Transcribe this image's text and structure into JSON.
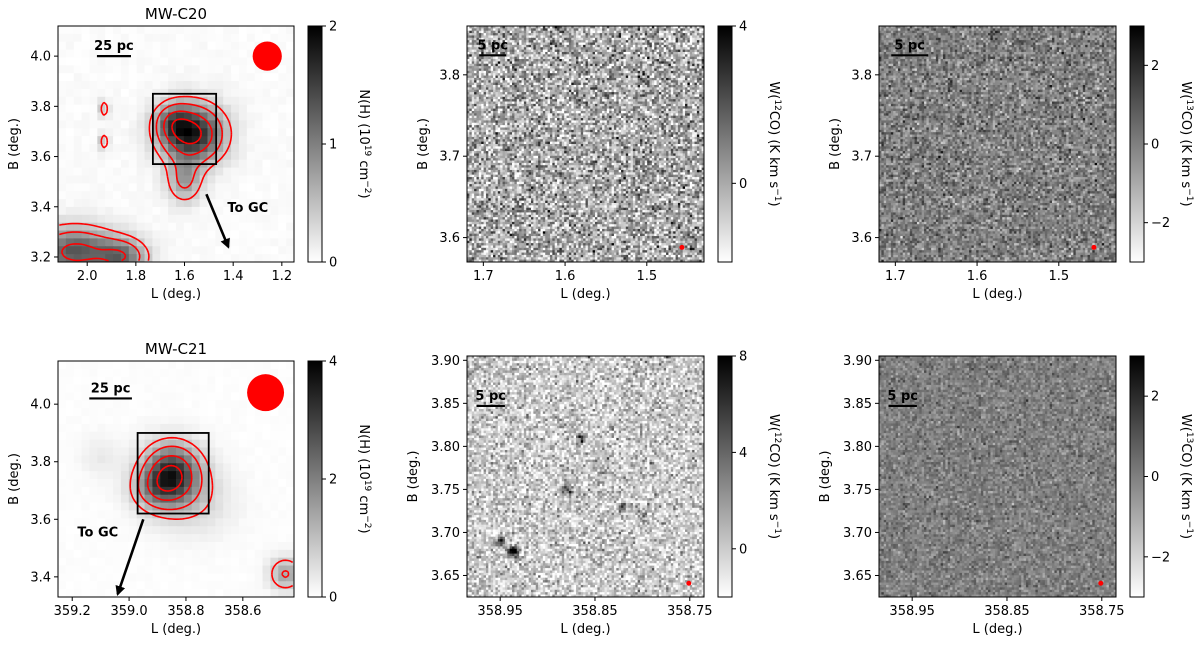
{
  "figure": {
    "colors": {
      "contour": "#ff0000",
      "beam": "#ff0000",
      "box": "#000000",
      "axis": "#000000"
    }
  },
  "chart_data": [
    {
      "id": "p00",
      "type": "heatmap",
      "title": "MW-C20",
      "xlabel": "L (deg.)",
      "ylabel": "B (deg.)",
      "xlim": [
        2.12,
        1.15
      ],
      "ylim": [
        3.18,
        4.12
      ],
      "xticks": [
        "2.0",
        "1.8",
        "1.6",
        "1.4",
        "1.2"
      ],
      "xtick_values": [
        2.0,
        1.8,
        1.6,
        1.4,
        1.2
      ],
      "yticks": [
        "3.2",
        "3.4",
        "3.6",
        "3.8",
        "4.0"
      ],
      "ytick_values": [
        3.2,
        3.4,
        3.6,
        3.8,
        4.0
      ],
      "colorbar": {
        "label": "N(H) (10<sup>19</sup> cm<sup>−2</sup>)",
        "label_text": "N(H) (10^19 cm^-2)",
        "ticks": [
          "0",
          "1",
          "2"
        ],
        "tick_values": [
          0,
          1,
          2
        ],
        "range": [
          0,
          2
        ],
        "cmap": "Greys"
      },
      "scalebar": {
        "label": "25 pc",
        "start": 1.96,
        "end": 1.82,
        "y": 4.0
      },
      "beam": {
        "l": 1.26,
        "b": 4.0,
        "radius_deg": 0.06
      },
      "box": {
        "l_range": [
          1.73,
          1.47
        ],
        "b_range": [
          3.57,
          3.85
        ]
      },
      "arrow": {
        "label": "To GC",
        "from": [
          1.51,
          3.45
        ],
        "to": [
          1.42,
          3.24
        ],
        "label_at": [
          1.34,
          3.38
        ]
      },
      "sources": [
        {
          "l": 1.57,
          "b": 3.69,
          "sl": 0.09,
          "sb": 0.08,
          "amp": 1.8
        },
        {
          "l": 1.65,
          "b": 3.74,
          "sl": 0.05,
          "sb": 0.05,
          "amp": 0.6
        },
        {
          "l": 1.6,
          "b": 3.5,
          "sl": 0.05,
          "sb": 0.06,
          "amp": 0.7
        },
        {
          "l": 1.93,
          "b": 3.79,
          "sl": 0.012,
          "sb": 0.025,
          "amp": 0.6
        },
        {
          "l": 1.93,
          "b": 3.66,
          "sl": 0.012,
          "sb": 0.025,
          "amp": 0.6
        },
        {
          "l": 2.05,
          "b": 3.22,
          "sl": 0.12,
          "sb": 0.07,
          "amp": 1.3
        },
        {
          "l": 1.85,
          "b": 3.2,
          "sl": 0.07,
          "sb": 0.05,
          "amp": 0.9
        }
      ]
    },
    {
      "id": "p01",
      "type": "heatmap",
      "title": "",
      "xlabel": "L (deg.)",
      "ylabel": "B (deg.)",
      "xlim": [
        1.72,
        1.43
      ],
      "ylim": [
        3.57,
        3.86
      ],
      "xticks": [
        "1.7",
        "1.6",
        "1.5"
      ],
      "xtick_values": [
        1.7,
        1.6,
        1.5
      ],
      "yticks": [
        "3.6",
        "3.7",
        "3.8"
      ],
      "ytick_values": [
        3.6,
        3.7,
        3.8
      ],
      "colorbar": {
        "label": "W(<sup>12</sup>CO) (K km s<sup>−1</sup>)",
        "label_text": "W(12CO) (K km s^-1)",
        "ticks": [
          "0",
          "4"
        ],
        "tick_values": [
          0,
          4
        ],
        "range": [
          -2.0,
          4.0
        ],
        "cmap": "Greys"
      },
      "scalebar": {
        "label": "5 pc",
        "start": 1.705,
        "end": 1.672,
        "y": 3.824
      },
      "beam": {
        "l": 1.457,
        "b": 3.588
      },
      "noise": 1.3,
      "sources": []
    },
    {
      "id": "p02",
      "type": "heatmap",
      "title": "",
      "xlabel": "L (deg.)",
      "ylabel": "B (deg.)",
      "xlim": [
        1.72,
        1.43
      ],
      "ylim": [
        3.57,
        3.86
      ],
      "xticks": [
        "1.7",
        "1.6",
        "1.5"
      ],
      "xtick_values": [
        1.7,
        1.6,
        1.5
      ],
      "yticks": [
        "3.6",
        "3.7",
        "3.8"
      ],
      "ytick_values": [
        3.6,
        3.7,
        3.8
      ],
      "colorbar": {
        "label": "W(<sup>13</sup>CO) (K km s<sup>−1</sup>)",
        "label_text": "W(13CO) (K km s^-1)",
        "ticks": [
          "−2",
          "0",
          "2"
        ],
        "tick_values": [
          -2,
          0,
          2
        ],
        "range": [
          -3.0,
          3.0
        ],
        "cmap": "Greys"
      },
      "scalebar": {
        "label": "5 pc",
        "start": 1.705,
        "end": 1.66,
        "y": 3.824
      },
      "beam": {
        "l": 1.457,
        "b": 3.588
      },
      "noise": 0.75,
      "sources": []
    },
    {
      "id": "p10",
      "type": "heatmap",
      "title": "MW-C21",
      "xlabel": "L (deg.)",
      "ylabel": "B (deg.)",
      "xlim": [
        359.25,
        358.42
      ],
      "ylim": [
        3.33,
        4.15
      ],
      "xticks": [
        "359.2",
        "359.0",
        "358.8",
        "358.6"
      ],
      "xtick_values": [
        359.2,
        359.0,
        358.8,
        358.6
      ],
      "yticks": [
        "3.4",
        "3.6",
        "3.8",
        "4.0"
      ],
      "ytick_values": [
        3.4,
        3.6,
        3.8,
        4.0
      ],
      "colorbar": {
        "label": "N(H) (10<sup>19</sup> cm<sup>−2</sup>)",
        "label_text": "N(H) (10^19 cm^-2)",
        "ticks": [
          "0",
          "2",
          "4"
        ],
        "tick_values": [
          0,
          2,
          4
        ],
        "range": [
          0,
          4
        ],
        "cmap": "Greys"
      },
      "scalebar": {
        "label": "25 pc",
        "start": 359.14,
        "end": 358.99,
        "y": 4.02
      },
      "beam": {
        "l": 358.52,
        "b": 4.04,
        "radius_deg": 0.065
      },
      "box": {
        "l_range": [
          358.97,
          358.72
        ],
        "b_range": [
          3.62,
          3.9
        ]
      },
      "arrow": {
        "label": "To GC",
        "from": [
          358.95,
          3.6
        ],
        "to": [
          359.04,
          3.34
        ],
        "label_at": [
          359.11,
          3.54
        ]
      },
      "sources": [
        {
          "l": 358.85,
          "b": 3.76,
          "sl": 0.07,
          "sb": 0.07,
          "amp": 3.2
        },
        {
          "l": 358.91,
          "b": 3.7,
          "sl": 0.06,
          "sb": 0.05,
          "amp": 1.0
        },
        {
          "l": 358.78,
          "b": 3.66,
          "sl": 0.1,
          "sb": 0.08,
          "amp": 0.6
        },
        {
          "l": 358.45,
          "b": 3.41,
          "sl": 0.04,
          "sb": 0.04,
          "amp": 1.4
        },
        {
          "l": 359.1,
          "b": 3.82,
          "sl": 0.05,
          "sb": 0.05,
          "amp": 0.3
        }
      ]
    },
    {
      "id": "p11",
      "type": "heatmap",
      "title": "",
      "xlabel": "L (deg.)",
      "ylabel": "B (deg.)",
      "xlim": [
        358.985,
        358.735
      ],
      "ylim": [
        3.625,
        3.905
      ],
      "xticks": [
        "358.95",
        "358.85",
        "358.75"
      ],
      "xtick_values": [
        358.95,
        358.85,
        358.75
      ],
      "yticks": [
        "3.65",
        "3.70",
        "3.75",
        "3.80",
        "3.85",
        "3.90"
      ],
      "ytick_values": [
        3.65,
        3.7,
        3.75,
        3.8,
        3.85,
        3.9
      ],
      "colorbar": {
        "label": "W(<sup>12</sup>CO) (K km s<sup>−1</sup>)",
        "label_text": "W(12CO) (K km s^-1)",
        "ticks": [
          "0",
          "4",
          "8"
        ],
        "tick_values": [
          0,
          4,
          8
        ],
        "range": [
          -2.0,
          8.0
        ],
        "cmap": "Greys"
      },
      "scalebar": {
        "label": "5 pc",
        "start": 358.975,
        "end": 358.945,
        "y": 3.847
      },
      "beam": {
        "l": 358.751,
        "b": 3.641
      },
      "noise": 1.6,
      "sources": [
        {
          "l": 358.937,
          "b": 3.678,
          "sl": 0.004,
          "sb": 0.004,
          "amp": 10
        },
        {
          "l": 358.95,
          "b": 3.69,
          "sl": 0.004,
          "sb": 0.004,
          "amp": 6
        },
        {
          "l": 358.88,
          "b": 3.75,
          "sl": 0.004,
          "sb": 0.004,
          "amp": 5
        },
        {
          "l": 358.865,
          "b": 3.81,
          "sl": 0.003,
          "sb": 0.004,
          "amp": 5
        },
        {
          "l": 358.82,
          "b": 3.73,
          "sl": 0.004,
          "sb": 0.003,
          "amp": 4
        },
        {
          "l": 358.8,
          "b": 3.72,
          "sl": 0.003,
          "sb": 0.003,
          "amp": 4
        }
      ]
    },
    {
      "id": "p12",
      "type": "heatmap",
      "title": "",
      "xlabel": "L (deg.)",
      "ylabel": "B (deg.)",
      "xlim": [
        358.985,
        358.735
      ],
      "ylim": [
        3.625,
        3.905
      ],
      "xticks": [
        "358.95",
        "358.85",
        "358.75"
      ],
      "xtick_values": [
        358.95,
        358.85,
        358.75
      ],
      "yticks": [
        "3.65",
        "3.70",
        "3.75",
        "3.80",
        "3.85",
        "3.90"
      ],
      "ytick_values": [
        3.65,
        3.7,
        3.75,
        3.8,
        3.85,
        3.9
      ],
      "colorbar": {
        "label": "W(<sup>13</sup>CO) (K km s<sup>−1</sup>)",
        "label_text": "W(13CO) (K km s^-1)",
        "ticks": [
          "−2",
          "0",
          "2"
        ],
        "tick_values": [
          -2,
          0,
          2
        ],
        "range": [
          -3.0,
          3.0
        ],
        "cmap": "Greys"
      },
      "scalebar": {
        "label": "5 pc",
        "start": 358.975,
        "end": 358.945,
        "y": 3.847
      },
      "beam": {
        "l": 358.751,
        "b": 3.641
      },
      "noise": 0.5,
      "sources": []
    }
  ]
}
